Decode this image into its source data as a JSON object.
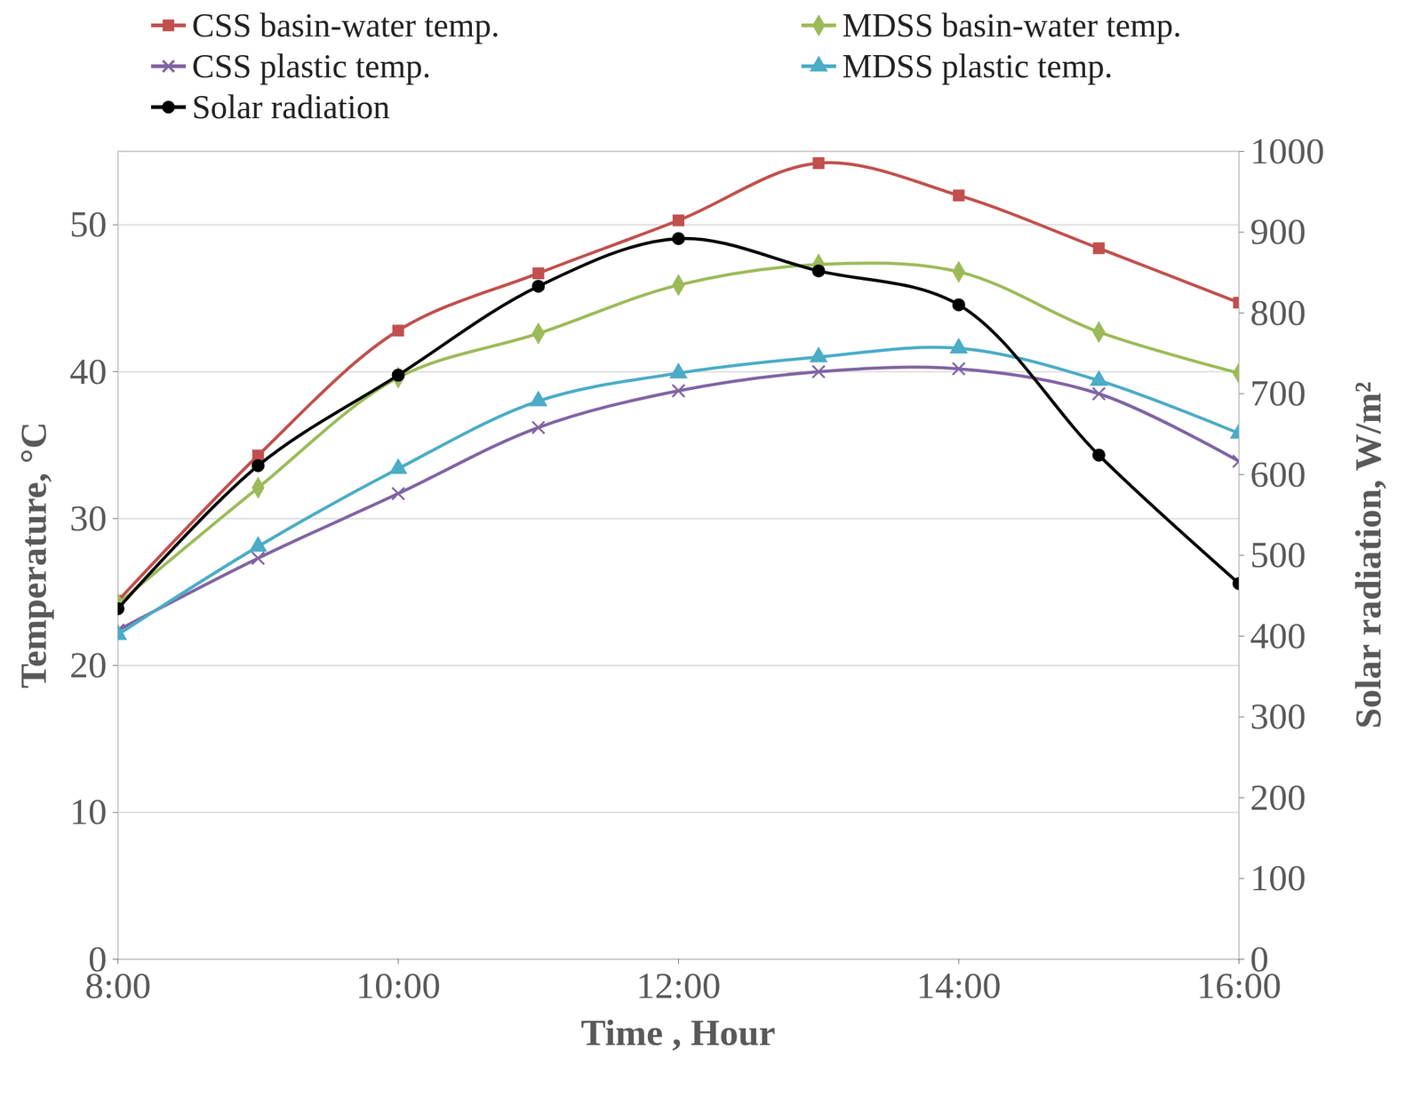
{
  "chart_data": {
    "type": "line",
    "x_label": "Time , Hour",
    "y_label": "Temperature, °C",
    "y2_label": "Solar radiation, W/m²",
    "x": [
      8,
      9,
      10,
      11,
      12,
      13,
      14,
      15,
      16
    ],
    "xlim": [
      8,
      16
    ],
    "xticks": [
      {
        "value": 8,
        "label": "8:00"
      },
      {
        "value": 10,
        "label": "10:00"
      },
      {
        "value": 12,
        "label": "12:00"
      },
      {
        "value": 14,
        "label": "14:00"
      },
      {
        "value": 16,
        "label": "16:00"
      }
    ],
    "ylim": [
      0,
      55
    ],
    "yticks": [
      0,
      10,
      20,
      30,
      40,
      50
    ],
    "y2lim": [
      0,
      1000
    ],
    "y2ticks": [
      0,
      100,
      200,
      300,
      400,
      500,
      600,
      700,
      800,
      900,
      1000
    ],
    "grid": true,
    "legend": "top",
    "series": [
      {
        "name": "CSS basin-water temp.",
        "color": "#c0504d",
        "marker": "square",
        "values": [
          24.4,
          34.3,
          42.8,
          46.7,
          50.3,
          54.2,
          52.0,
          48.4,
          44.7
        ]
      },
      {
        "name": "MDSS basin-water temp.",
        "color": "#9bbb59",
        "marker": "diamond",
        "values": [
          24.2,
          32.1,
          39.6,
          42.6,
          45.9,
          47.3,
          46.8,
          42.7,
          39.9
        ]
      },
      {
        "name": "CSS plastic temp.",
        "color": "#8064a2",
        "marker": "times",
        "values": [
          22.4,
          27.3,
          31.7,
          36.2,
          38.7,
          40.0,
          40.2,
          38.5,
          33.9
        ]
      },
      {
        "name": "MDSS plastic temp.",
        "color": "#4bacc6",
        "marker": "triangle",
        "values": [
          22.1,
          28.1,
          33.4,
          38.0,
          39.9,
          41.0,
          41.6,
          39.4,
          35.8
        ]
      },
      {
        "name": "Solar radiation",
        "color": "#000000",
        "marker": "circle",
        "axis": "y2",
        "values": [
          434,
          611,
          723,
          833,
          892,
          852,
          810,
          624,
          465
        ]
      }
    ]
  }
}
